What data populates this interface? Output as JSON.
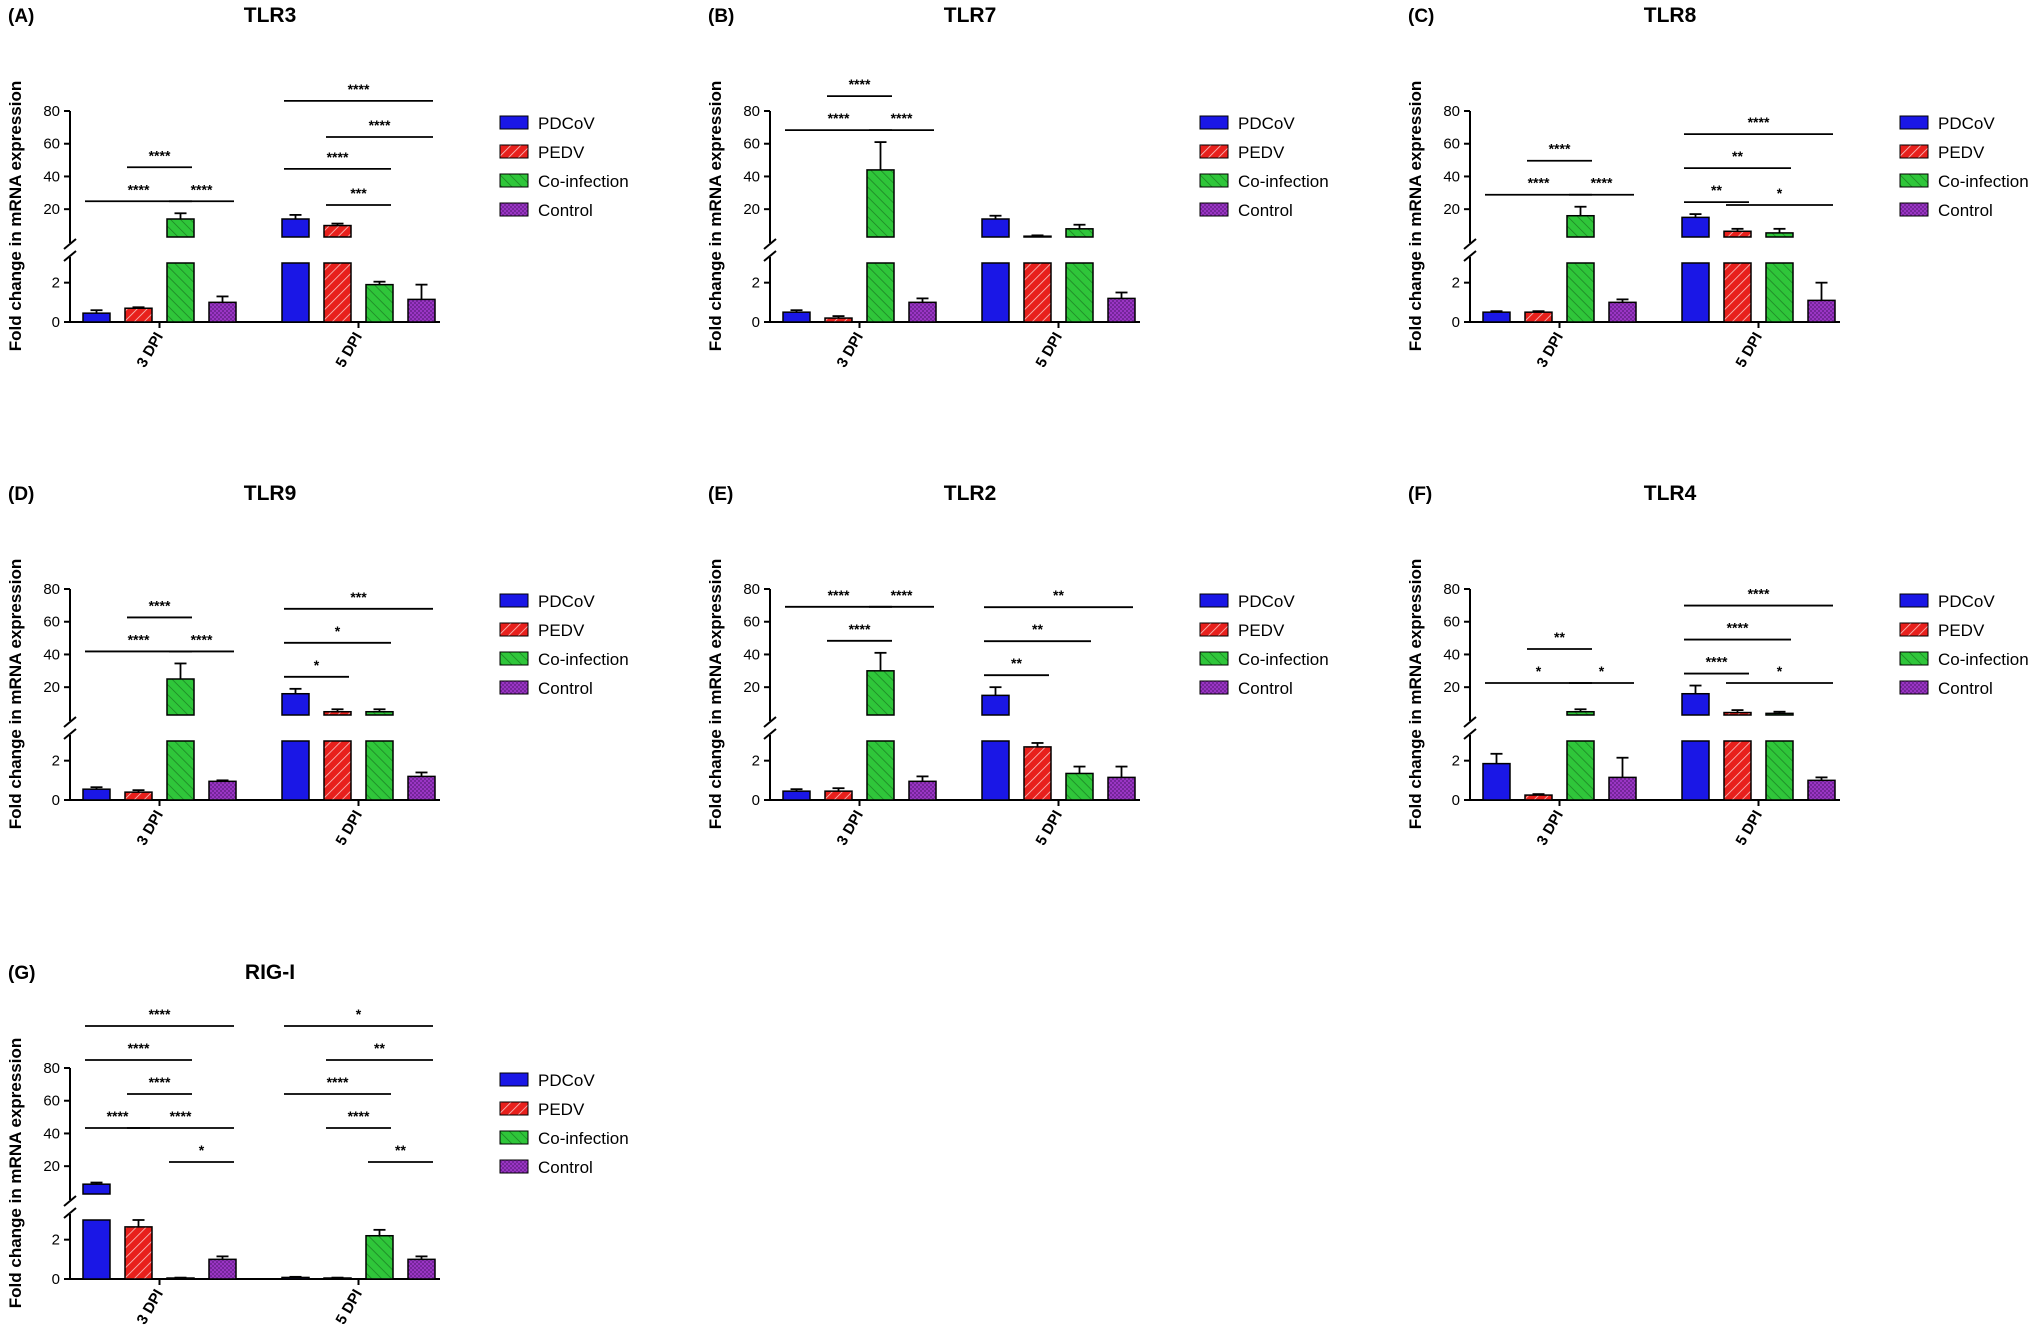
{
  "colors": {
    "PDCoV": "#1a17e6",
    "PEDV": "#e8201c",
    "Co-infection": "#2fc63a",
    "Control": "#9a35c4"
  },
  "legend": [
    "PDCoV",
    "PEDV",
    "Co-infection",
    "Control"
  ],
  "chart_data": [
    {
      "type": "bar",
      "panel": "(A)",
      "title": "TLR3",
      "ylabel": "Fold change in mRNA expression",
      "categories": [
        "3 DPI",
        "5 DPI"
      ],
      "y_axis": {
        "broken": true,
        "lower_range": [
          0,
          3
        ],
        "lower_ticks": [
          0,
          2
        ],
        "upper_range": [
          3,
          80
        ],
        "upper_ticks": [
          20,
          40,
          60,
          80
        ]
      },
      "series": [
        {
          "name": "PDCoV",
          "values": [
            0.45,
            14
          ],
          "errors": [
            0.15,
            2.5
          ]
        },
        {
          "name": "PEDV",
          "values": [
            0.7,
            10
          ],
          "errors": [
            0.05,
            1.2
          ]
        },
        {
          "name": "Co-infection",
          "values": [
            14,
            1.9
          ],
          "errors": [
            3.5,
            0.15
          ]
        },
        {
          "name": "Control",
          "values": [
            1.0,
            1.15
          ],
          "errors": [
            0.3,
            0.75
          ]
        }
      ],
      "significance": [
        {
          "group": 0,
          "from": 2,
          "to": 3,
          "label": "****",
          "level": 1
        },
        {
          "group": 0,
          "from": 0,
          "to": 2,
          "label": "****",
          "level": 1
        },
        {
          "group": 0,
          "from": 1,
          "to": 2,
          "label": "****",
          "level": 2
        },
        {
          "group": 1,
          "from": 1,
          "to": 2,
          "label": "***",
          "level": 1
        },
        {
          "group": 1,
          "from": 0,
          "to": 2,
          "label": "****",
          "level": 2
        },
        {
          "group": 1,
          "from": 1,
          "to": 3,
          "label": "****",
          "level": 3
        },
        {
          "group": 1,
          "from": 0,
          "to": 3,
          "label": "****",
          "level": 4
        }
      ]
    },
    {
      "type": "bar",
      "panel": "(B)",
      "title": "TLR7",
      "ylabel": "Fold change in mRNA expression",
      "categories": [
        "3 DPI",
        "5 DPI"
      ],
      "y_axis": {
        "broken": true,
        "lower_range": [
          0,
          3
        ],
        "lower_ticks": [
          0,
          2
        ],
        "upper_range": [
          3,
          80
        ],
        "upper_ticks": [
          20,
          40,
          60,
          80
        ]
      },
      "series": [
        {
          "name": "PDCoV",
          "values": [
            0.5,
            14
          ],
          "errors": [
            0.1,
            2.0
          ]
        },
        {
          "name": "PEDV",
          "values": [
            0.2,
            3.5
          ],
          "errors": [
            0.1,
            0.5
          ]
        },
        {
          "name": "Co-infection",
          "values": [
            44,
            8
          ],
          "errors": [
            17,
            2.5
          ]
        },
        {
          "name": "Control",
          "values": [
            1.0,
            1.2
          ],
          "errors": [
            0.2,
            0.3
          ]
        }
      ],
      "significance": [
        {
          "group": 0,
          "from": 0,
          "to": 2,
          "label": "****",
          "level": 1
        },
        {
          "group": 0,
          "from": 2,
          "to": 3,
          "label": "****",
          "level": 1
        },
        {
          "group": 0,
          "from": 1,
          "to": 2,
          "label": "****",
          "level": 2
        }
      ]
    },
    {
      "type": "bar",
      "panel": "(C)",
      "title": "TLR8",
      "ylabel": "Fold change in mRNA expression",
      "categories": [
        "3 DPI",
        "5 DPI"
      ],
      "y_axis": {
        "broken": true,
        "lower_range": [
          0,
          3
        ],
        "lower_ticks": [
          0,
          2
        ],
        "upper_range": [
          3,
          80
        ],
        "upper_ticks": [
          20,
          40,
          60,
          80
        ]
      },
      "series": [
        {
          "name": "PDCoV",
          "values": [
            0.5,
            15
          ],
          "errors": [
            0.05,
            2.0
          ]
        },
        {
          "name": "PEDV",
          "values": [
            0.5,
            6.5
          ],
          "errors": [
            0.05,
            1.5
          ]
        },
        {
          "name": "Co-infection",
          "values": [
            16,
            5.5
          ],
          "errors": [
            5.5,
            2.5
          ]
        },
        {
          "name": "Control",
          "values": [
            1.0,
            1.1
          ],
          "errors": [
            0.15,
            0.9
          ]
        }
      ],
      "significance": [
        {
          "group": 0,
          "from": 0,
          "to": 2,
          "label": "****",
          "level": 1
        },
        {
          "group": 0,
          "from": 2,
          "to": 3,
          "label": "****",
          "level": 1
        },
        {
          "group": 0,
          "from": 1,
          "to": 2,
          "label": "****",
          "level": 2
        },
        {
          "group": 1,
          "from": 0,
          "to": 1,
          "label": "**",
          "level": 1
        },
        {
          "group": 1,
          "from": 1,
          "to": 3,
          "label": "*",
          "level": 1
        },
        {
          "group": 1,
          "from": 0,
          "to": 2,
          "label": "**",
          "level": 2
        },
        {
          "group": 1,
          "from": 0,
          "to": 3,
          "label": "****",
          "level": 3
        }
      ]
    },
    {
      "type": "bar",
      "panel": "(D)",
      "title": "TLR9",
      "ylabel": "Fold change in mRNA expression",
      "categories": [
        "3 DPI",
        "5 DPI"
      ],
      "y_axis": {
        "broken": true,
        "lower_range": [
          0,
          3
        ],
        "lower_ticks": [
          0,
          2
        ],
        "upper_range": [
          3,
          80
        ],
        "upper_ticks": [
          20,
          40,
          60,
          80
        ]
      },
      "series": [
        {
          "name": "PDCoV",
          "values": [
            0.55,
            16
          ],
          "errors": [
            0.1,
            3.0
          ]
        },
        {
          "name": "PEDV",
          "values": [
            0.4,
            5
          ],
          "errors": [
            0.1,
            1.5
          ]
        },
        {
          "name": "Co-infection",
          "values": [
            25,
            5
          ],
          "errors": [
            9.5,
            1.5
          ]
        },
        {
          "name": "Control",
          "values": [
            0.95,
            1.2
          ],
          "errors": [
            0.05,
            0.2
          ]
        }
      ],
      "significance": [
        {
          "group": 0,
          "from": 0,
          "to": 2,
          "label": "****",
          "level": 1
        },
        {
          "group": 0,
          "from": 2,
          "to": 3,
          "label": "****",
          "level": 1
        },
        {
          "group": 0,
          "from": 1,
          "to": 2,
          "label": "****",
          "level": 2
        },
        {
          "group": 1,
          "from": 0,
          "to": 1,
          "label": "*",
          "level": 1
        },
        {
          "group": 1,
          "from": 0,
          "to": 2,
          "label": "*",
          "level": 2
        },
        {
          "group": 1,
          "from": 0,
          "to": 3,
          "label": "***",
          "level": 3
        }
      ]
    },
    {
      "type": "bar",
      "panel": "(E)",
      "title": "TLR2",
      "ylabel": "Fold change in mRNA expression",
      "categories": [
        "3 DPI",
        "5 DPI"
      ],
      "y_axis": {
        "broken": true,
        "lower_range": [
          0,
          3
        ],
        "lower_ticks": [
          0,
          2
        ],
        "upper_range": [
          3,
          80
        ],
        "upper_ticks": [
          20,
          40,
          60,
          80
        ]
      },
      "series": [
        {
          "name": "PDCoV",
          "values": [
            0.45,
            15
          ],
          "errors": [
            0.1,
            5.0
          ]
        },
        {
          "name": "PEDV",
          "values": [
            0.45,
            2.7
          ],
          "errors": [
            0.15,
            0.2
          ]
        },
        {
          "name": "Co-infection",
          "values": [
            30,
            1.35
          ],
          "errors": [
            11,
            0.35
          ]
        },
        {
          "name": "Control",
          "values": [
            0.95,
            1.15
          ],
          "errors": [
            0.25,
            0.55
          ]
        }
      ],
      "significance": [
        {
          "group": 0,
          "from": 1,
          "to": 2,
          "label": "****",
          "level": 1
        },
        {
          "group": 0,
          "from": 0,
          "to": 2,
          "label": "****",
          "level": 2
        },
        {
          "group": 0,
          "from": 2,
          "to": 3,
          "label": "****",
          "level": 2
        },
        {
          "group": 1,
          "from": 0,
          "to": 1,
          "label": "**",
          "level": 1
        },
        {
          "group": 1,
          "from": 0,
          "to": 2,
          "label": "**",
          "level": 2
        },
        {
          "group": 1,
          "from": 0,
          "to": 3,
          "label": "**",
          "level": 3
        }
      ]
    },
    {
      "type": "bar",
      "panel": "(F)",
      "title": "TLR4",
      "ylabel": "Fold change in mRNA expression",
      "categories": [
        "3 DPI",
        "5 DPI"
      ],
      "y_axis": {
        "broken": true,
        "lower_range": [
          0,
          3
        ],
        "lower_ticks": [
          0,
          2
        ],
        "upper_range": [
          3,
          80
        ],
        "upper_ticks": [
          20,
          40,
          60,
          80
        ]
      },
      "series": [
        {
          "name": "PDCoV",
          "values": [
            1.85,
            16
          ],
          "errors": [
            0.5,
            5.0
          ]
        },
        {
          "name": "PEDV",
          "values": [
            0.25,
            4.5
          ],
          "errors": [
            0.05,
            1.5
          ]
        },
        {
          "name": "Co-infection",
          "values": [
            5,
            4
          ],
          "errors": [
            1.5,
            1.0
          ]
        },
        {
          "name": "Control",
          "values": [
            1.15,
            1.0
          ],
          "errors": [
            1.0,
            0.15
          ]
        }
      ],
      "significance": [
        {
          "group": 0,
          "from": 0,
          "to": 2,
          "label": "*",
          "level": 1
        },
        {
          "group": 0,
          "from": 2,
          "to": 3,
          "label": "*",
          "level": 1
        },
        {
          "group": 0,
          "from": 1,
          "to": 2,
          "label": "**",
          "level": 2
        },
        {
          "group": 1,
          "from": 0,
          "to": 1,
          "label": "****",
          "level": 1
        },
        {
          "group": 1,
          "from": 1,
          "to": 3,
          "label": "*",
          "level": 1
        },
        {
          "group": 1,
          "from": 0,
          "to": 2,
          "label": "****",
          "level": 2
        },
        {
          "group": 1,
          "from": 0,
          "to": 3,
          "label": "****",
          "level": 3
        }
      ]
    },
    {
      "type": "bar",
      "panel": "(G)",
      "title": "RIG-I",
      "ylabel": "Fold change in mRNA expression",
      "categories": [
        "3 DPI",
        "5 DPI"
      ],
      "y_axis": {
        "broken": true,
        "lower_range": [
          0,
          3
        ],
        "lower_ticks": [
          0,
          2
        ],
        "upper_range": [
          3,
          80
        ],
        "upper_ticks": [
          20,
          40,
          60,
          80
        ]
      },
      "series": [
        {
          "name": "PDCoV",
          "values": [
            9,
            0.08
          ],
          "errors": [
            1.0,
            0.03
          ]
        },
        {
          "name": "PEDV",
          "values": [
            2.65,
            0.05
          ],
          "errors": [
            0.35,
            0.02
          ]
        },
        {
          "name": "Co-infection",
          "values": [
            0.05,
            2.2
          ],
          "errors": [
            0.02,
            0.3
          ]
        },
        {
          "name": "Control",
          "values": [
            1.0,
            1.0
          ],
          "errors": [
            0.15,
            0.15
          ]
        }
      ],
      "significance": [
        {
          "group": 0,
          "from": 2,
          "to": 3,
          "label": "*",
          "level": 1
        },
        {
          "group": 0,
          "from": 0,
          "to": 1,
          "label": "****",
          "level": 2
        },
        {
          "group": 0,
          "from": 1,
          "to": 3,
          "label": "****",
          "level": 2
        },
        {
          "group": 0,
          "from": 1,
          "to": 2,
          "label": "****",
          "level": 3
        },
        {
          "group": 0,
          "from": 0,
          "to": 2,
          "label": "****",
          "level": 4
        },
        {
          "group": 0,
          "from": 0,
          "to": 3,
          "label": "****",
          "level": 5
        },
        {
          "group": 1,
          "from": 2,
          "to": 3,
          "label": "**",
          "level": 1
        },
        {
          "group": 1,
          "from": 1,
          "to": 2,
          "label": "****",
          "level": 2
        },
        {
          "group": 1,
          "from": 0,
          "to": 2,
          "label": "****",
          "level": 3
        },
        {
          "group": 1,
          "from": 1,
          "to": 3,
          "label": "**",
          "level": 4
        },
        {
          "group": 1,
          "from": 0,
          "to": 3,
          "label": "*",
          "level": 5
        }
      ]
    }
  ]
}
